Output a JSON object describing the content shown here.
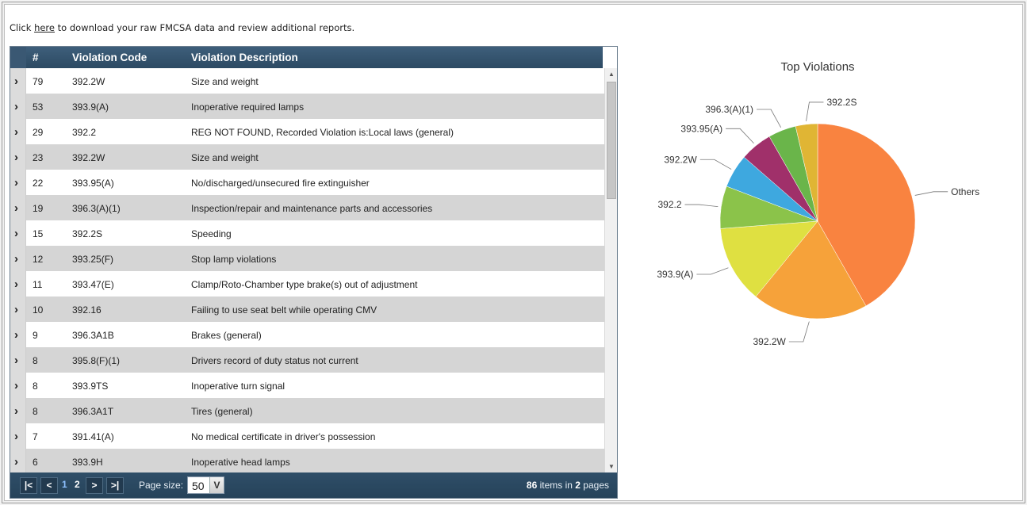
{
  "intro": {
    "prefix": "Click ",
    "link": "here",
    "suffix": " to download your raw FMCSA data and review additional reports."
  },
  "grid": {
    "columns": {
      "num": "#",
      "code": "Violation Code",
      "desc": "Violation Description"
    },
    "rows": [
      {
        "num": "79",
        "code": "392.2W",
        "desc": "Size and weight"
      },
      {
        "num": "53",
        "code": "393.9(A)",
        "desc": "Inoperative required lamps"
      },
      {
        "num": "29",
        "code": "392.2",
        "desc": "REG NOT FOUND, Recorded Violation is:Local laws (general)"
      },
      {
        "num": "23",
        "code": "392.2W",
        "desc": "Size and weight"
      },
      {
        "num": "22",
        "code": "393.95(A)",
        "desc": "No/discharged/unsecured fire extinguisher"
      },
      {
        "num": "19",
        "code": "396.3(A)(1)",
        "desc": "Inspection/repair and maintenance parts and accessories"
      },
      {
        "num": "15",
        "code": "392.2S",
        "desc": "Speeding"
      },
      {
        "num": "12",
        "code": "393.25(F)",
        "desc": "Stop lamp violations"
      },
      {
        "num": "11",
        "code": "393.47(E)",
        "desc": "Clamp/Roto-Chamber type brake(s) out of adjustment"
      },
      {
        "num": "10",
        "code": "392.16",
        "desc": "Failing to use seat belt while operating CMV"
      },
      {
        "num": "9",
        "code": "396.3A1B",
        "desc": "Brakes (general)"
      },
      {
        "num": "8",
        "code": "395.8(F)(1)",
        "desc": "Drivers record of duty status not current"
      },
      {
        "num": "8",
        "code": "393.9TS",
        "desc": "Inoperative turn signal"
      },
      {
        "num": "8",
        "code": "396.3A1T",
        "desc": "Tires (general)"
      },
      {
        "num": "7",
        "code": "391.41(A)",
        "desc": "No medical certificate in driver's possession"
      },
      {
        "num": "6",
        "code": "393.9H",
        "desc": "Inoperative head lamps"
      }
    ],
    "expand_glyph": "›",
    "scroll_up": "▲",
    "scroll_down": "▼"
  },
  "pager": {
    "first": "|<",
    "prev": "<",
    "pages": [
      "1",
      "2"
    ],
    "current_page": "1",
    "next": ">",
    "last": ">|",
    "page_size_label": "Page size:",
    "page_size": "50",
    "page_size_dropdown": "V",
    "items_count": "86",
    "items_text": " items in ",
    "page_count": "2",
    "pages_text": " pages"
  },
  "chart_data": {
    "type": "pie",
    "title": "Top Violations",
    "slices": [
      {
        "label": "Others",
        "value": 172,
        "color": "#f98340"
      },
      {
        "label": "392.2W",
        "value": 79,
        "color": "#f6a23a"
      },
      {
        "label": "393.9(A)",
        "value": 53,
        "color": "#dfe041"
      },
      {
        "label": "392.2",
        "value": 29,
        "color": "#8bc34a"
      },
      {
        "label": "392.2W",
        "value": 23,
        "color": "#3ea8df"
      },
      {
        "label": "393.95(A)",
        "value": 22,
        "color": "#a0306a"
      },
      {
        "label": "396.3(A)(1)",
        "value": 19,
        "color": "#6ab54a"
      },
      {
        "label": "392.2S",
        "value": 15,
        "color": "#e0b534"
      }
    ]
  }
}
